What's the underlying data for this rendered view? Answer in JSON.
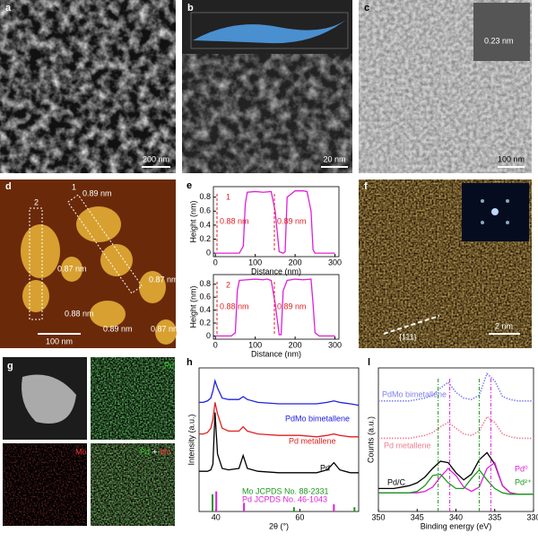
{
  "panels": {
    "a": {
      "letter": "a",
      "scale_bar": "200 nm"
    },
    "b": {
      "letter": "b",
      "scale_bar": "20 nm"
    },
    "c": {
      "letter": "c",
      "inset_label": "0.23 nm",
      "scale_bar": "100 nm"
    },
    "d": {
      "letter": "d",
      "lines": [
        "1",
        "2"
      ],
      "heights": [
        "0.89 nm",
        "0.87 nm",
        "0.87 nm",
        "0.88 nm",
        "0.89 nm",
        "0.87 nm"
      ],
      "scale_bar": "100 nm"
    },
    "e": {
      "letter": "e"
    },
    "f": {
      "letter": "f",
      "facet": "{111}",
      "scale_bar": "2 nm"
    },
    "g": {
      "letter": "g",
      "labels": [
        "Pd",
        "Mo",
        "Pd",
        "+",
        "Mo"
      ]
    },
    "h": {
      "letter": "h"
    },
    "l": {
      "letter": "l"
    }
  },
  "chart_data": [
    {
      "type": "line",
      "label": "1",
      "xlabel": "Distance (nm)",
      "ylabel": "Height (nm)",
      "color": "#e020d8",
      "x": [
        0,
        20,
        40,
        60,
        70,
        75,
        80,
        100,
        120,
        140,
        150,
        160,
        170,
        175,
        180,
        200,
        220,
        230,
        240,
        245,
        250,
        270,
        300
      ],
      "values": [
        0,
        0,
        0,
        0,
        0.1,
        0.7,
        0.87,
        0.88,
        0.87,
        0.88,
        0.6,
        0.02,
        0,
        0.02,
        0.8,
        0.89,
        0.89,
        0.88,
        0.6,
        0.05,
        0,
        0,
        0
      ],
      "annotations": [
        "0.88 nm",
        "0.89 nm"
      ],
      "xlim": [
        -5,
        310
      ],
      "ylim": [
        -0.05,
        0.95
      ],
      "xticks": [
        0,
        100,
        200,
        300
      ],
      "yticks": [
        0,
        0.2,
        0.4,
        0.6,
        0.8
      ]
    },
    {
      "type": "line",
      "label": "2",
      "xlabel": "Distance (nm)",
      "ylabel": "Height (nm)",
      "color": "#e020d8",
      "x": [
        0,
        20,
        40,
        50,
        55,
        60,
        80,
        100,
        120,
        130,
        140,
        150,
        160,
        165,
        170,
        180,
        200,
        220,
        240,
        245,
        250,
        260,
        300
      ],
      "values": [
        0,
        0,
        0,
        0.05,
        0.7,
        0.86,
        0.87,
        0.88,
        0.87,
        0.88,
        0.86,
        0.5,
        0.02,
        0.02,
        0.7,
        0.86,
        0.88,
        0.87,
        0.88,
        0.5,
        0.05,
        0,
        0
      ],
      "annotations": [
        "0.88 nm",
        "0.89 nm"
      ],
      "xlim": [
        -5,
        310
      ],
      "ylim": [
        -0.05,
        0.95
      ],
      "xticks": [
        0,
        100,
        200,
        300
      ],
      "yticks": [
        0,
        0.2,
        0.4,
        0.6,
        0.8
      ]
    },
    {
      "type": "line",
      "xlabel": "2θ (°)",
      "ylabel": "Intensity (a.u.)",
      "x": [
        36,
        37,
        38,
        38.8,
        39.3,
        39.8,
        40.4,
        41.5,
        43,
        45.5,
        46.5,
        47.5,
        50,
        55,
        60,
        64,
        66.5,
        68.1,
        69.5,
        72,
        74
      ],
      "series": [
        {
          "name": "PdMo bimetallene",
          "color": "#2020e0",
          "values": [
            7.6,
            7.6,
            7.7,
            7.9,
            8.4,
            9.1,
            8.6,
            7.9,
            7.8,
            7.8,
            8.0,
            7.8,
            7.6,
            7.5,
            7.5,
            7.5,
            7.6,
            7.7,
            7.6,
            7.5,
            7.4
          ]
        },
        {
          "name": "Pd metallene",
          "color": "#e02020",
          "values": [
            5.4,
            5.4,
            5.5,
            5.8,
            6.4,
            7.6,
            6.8,
            5.8,
            5.6,
            5.6,
            5.9,
            5.6,
            5.4,
            5.3,
            5.3,
            5.2,
            5.3,
            5.4,
            5.3,
            5.2,
            5.2
          ]
        },
        {
          "name": "Pd",
          "color": "#000000",
          "values": [
            2.8,
            2.8,
            2.8,
            2.9,
            3.3,
            6.9,
            4.0,
            3.0,
            2.9,
            3.0,
            3.9,
            3.0,
            2.8,
            2.7,
            2.7,
            2.7,
            2.9,
            3.4,
            2.9,
            2.7,
            2.7
          ]
        }
      ],
      "references": [
        {
          "name": "Mo JCPDS No. 88-2331",
          "color": "#1a9a1a",
          "positions": [
            39.2,
            58.6,
            73.0
          ],
          "heights": [
            1.2,
            0.3,
            0.3
          ]
        },
        {
          "name": "Pd JCPDS No. 46-1043",
          "color": "#e020d8",
          "positions": [
            40.1,
            46.7,
            68.1
          ],
          "heights": [
            1.4,
            0.6,
            0.5
          ]
        }
      ],
      "xlim": [
        36,
        74
      ],
      "ylim": [
        0,
        10
      ],
      "xticks": [
        40,
        60
      ]
    },
    {
      "type": "line",
      "xlabel": "Binding energy (eV)",
      "ylabel": "Counts (a.u.)",
      "x": [
        350,
        349,
        348,
        347,
        346,
        345,
        344,
        343,
        342,
        341,
        340,
        339,
        338,
        337,
        336,
        335,
        334,
        333,
        332,
        331,
        330
      ],
      "series": [
        {
          "name": "PdMo bimetallene",
          "color": "#8080f0",
          "style": "dotted",
          "values": [
            7.7,
            7.7,
            7.7,
            7.7,
            7.7,
            7.8,
            7.9,
            8.1,
            8.6,
            9.0,
            8.3,
            7.9,
            7.8,
            8.1,
            9.6,
            9.1,
            8.0,
            7.8,
            7.7,
            7.7,
            7.7
          ]
        },
        {
          "name": "Pd metallene",
          "color": "#f08090",
          "style": "dotted",
          "values": [
            5.1,
            5.1,
            5.1,
            5.1,
            5.1,
            5.2,
            5.3,
            5.5,
            5.9,
            6.2,
            5.8,
            5.4,
            5.3,
            5.6,
            6.6,
            6.2,
            5.4,
            5.2,
            5.1,
            5.1,
            5.1
          ]
        },
        {
          "name": "Pd/C",
          "color": "#000000",
          "values": [
            1.6,
            1.6,
            1.6,
            1.7,
            1.8,
            2.0,
            2.4,
            3.0,
            3.5,
            3.4,
            2.7,
            2.2,
            2.6,
            3.6,
            4.1,
            3.3,
            1.8,
            1.3,
            1.2,
            1.2,
            1.2
          ]
        },
        {
          "name": "Pd⁰",
          "color": "#e020d8",
          "values": [
            1.3,
            1.3,
            1.3,
            1.3,
            1.3,
            1.3,
            1.4,
            1.7,
            2.4,
            3.0,
            2.5,
            1.7,
            1.4,
            1.7,
            3.0,
            3.4,
            1.8,
            1.3,
            1.2,
            1.2,
            1.2
          ]
        },
        {
          "name": "Pd²⁺",
          "color": "#1a9a1a",
          "values": [
            1.3,
            1.3,
            1.3,
            1.3,
            1.3,
            1.4,
            1.8,
            2.5,
            2.6,
            2.0,
            1.6,
            1.6,
            2.3,
            2.9,
            2.2,
            1.6,
            1.3,
            1.2,
            1.2,
            1.2,
            1.2
          ]
        }
      ],
      "ref_lines": [
        {
          "color": "#1a9a1a",
          "positions": [
            342.3,
            337
          ]
        },
        {
          "color": "#e020d8",
          "positions": [
            340.8,
            335.5
          ]
        }
      ],
      "xlim": [
        350,
        330
      ],
      "ylim": [
        0,
        10
      ],
      "xticks": [
        350,
        345,
        340,
        335,
        330
      ]
    }
  ]
}
